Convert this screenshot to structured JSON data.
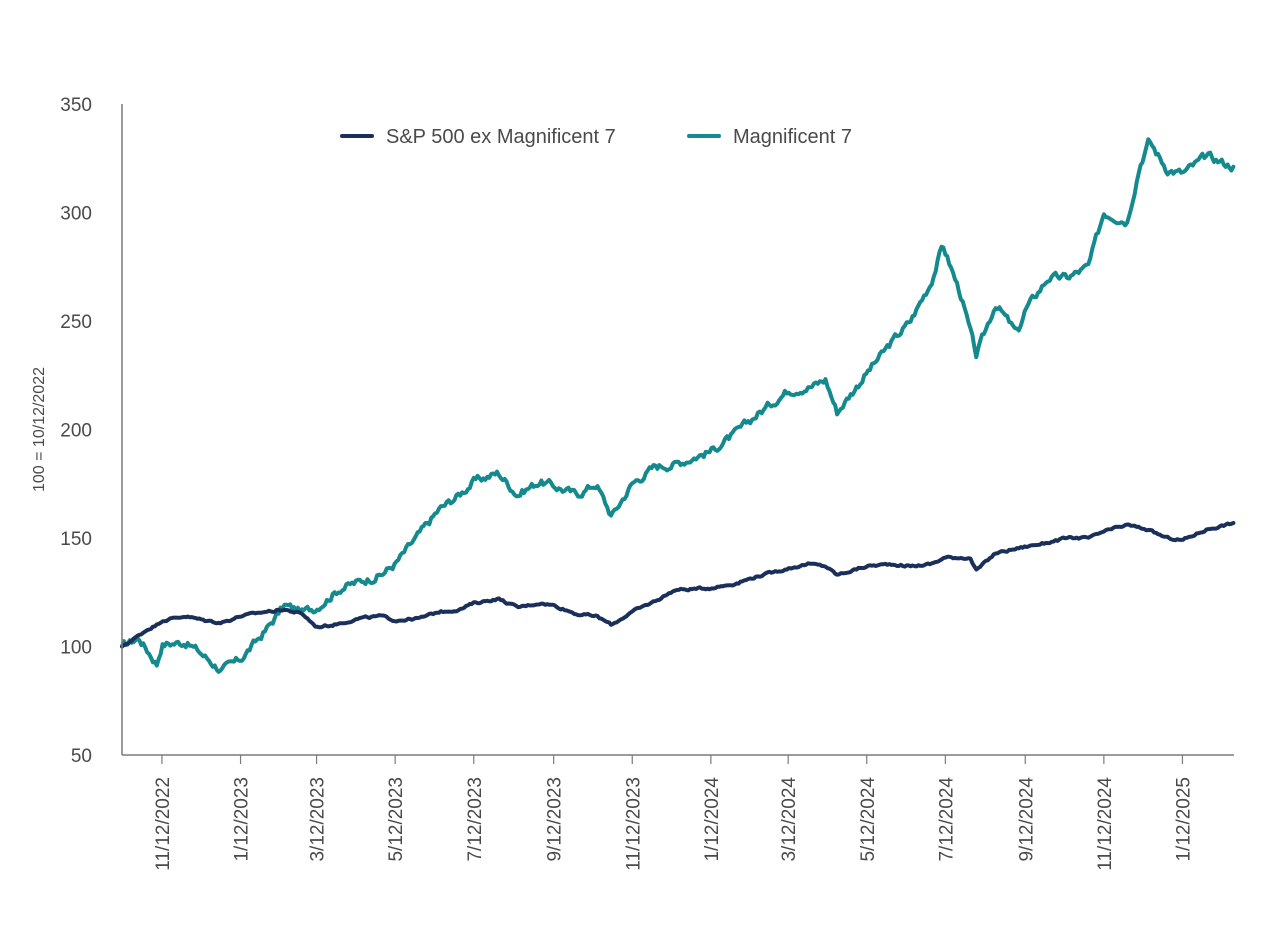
{
  "chart_data": {
    "type": "line",
    "title": "",
    "xlabel": "",
    "ylabel": "100 = 10/12/2022",
    "ylim": [
      50,
      350
    ],
    "yticks": [
      50,
      100,
      150,
      200,
      250,
      300,
      350
    ],
    "xlim": [
      "10/12/2022",
      "2/21/2025"
    ],
    "xticks": [
      "11/12/2022",
      "1/12/2023",
      "3/12/2023",
      "5/12/2023",
      "7/12/2023",
      "9/12/2023",
      "11/12/2023",
      "1/12/2024",
      "3/12/2024",
      "5/12/2024",
      "7/12/2024",
      "9/12/2024",
      "11/12/2024",
      "1/12/2025"
    ],
    "grid": false,
    "legend": "top-center",
    "series": [
      {
        "name": "S&P 500 ex Magnificent 7",
        "color": "#1b2f5b",
        "points": [
          [
            "10/12/2022",
            100
          ],
          [
            "10/20/2022",
            103
          ],
          [
            "11/1/2022",
            108
          ],
          [
            "11/8/2022",
            110
          ],
          [
            "11/12/2022",
            112
          ],
          [
            "11/30/2022",
            114
          ],
          [
            "12/15/2022",
            112
          ],
          [
            "12/28/2022",
            111
          ],
          [
            "1/12/2023",
            114
          ],
          [
            "1/31/2023",
            116
          ],
          [
            "2/15/2023",
            117
          ],
          [
            "3/1/2023",
            115
          ],
          [
            "3/12/2023",
            109
          ],
          [
            "3/25/2023",
            110
          ],
          [
            "4/15/2023",
            113
          ],
          [
            "5/1/2023",
            114
          ],
          [
            "5/12/2023",
            112
          ],
          [
            "5/31/2023",
            113
          ],
          [
            "6/15/2023",
            116
          ],
          [
            "7/1/2023",
            117
          ],
          [
            "7/12/2023",
            120
          ],
          [
            "7/31/2023",
            122
          ],
          [
            "8/15/2023",
            118
          ],
          [
            "9/1/2023",
            120
          ],
          [
            "9/12/2023",
            119
          ],
          [
            "9/30/2023",
            115
          ],
          [
            "10/15/2023",
            114
          ],
          [
            "10/27/2023",
            110
          ],
          [
            "11/12/2023",
            116
          ],
          [
            "11/30/2023",
            121
          ],
          [
            "12/15/2023",
            126
          ],
          [
            "1/12/2024",
            127
          ],
          [
            "1/31/2024",
            129
          ],
          [
            "2/15/2024",
            132
          ],
          [
            "3/12/2024",
            136
          ],
          [
            "3/28/2024",
            138
          ],
          [
            "4/10/2024",
            137
          ],
          [
            "4/19/2024",
            133
          ],
          [
            "5/12/2024",
            137
          ],
          [
            "5/31/2024",
            138
          ],
          [
            "6/15/2024",
            137
          ],
          [
            "7/1/2024",
            138
          ],
          [
            "7/12/2024",
            141
          ],
          [
            "7/31/2024",
            141
          ],
          [
            "8/5/2024",
            135
          ],
          [
            "8/20/2024",
            143
          ],
          [
            "9/12/2024",
            146
          ],
          [
            "9/30/2024",
            148
          ],
          [
            "10/15/2024",
            150
          ],
          [
            "11/1/2024",
            150
          ],
          [
            "11/12/2024",
            153
          ],
          [
            "11/30/2024",
            156
          ],
          [
            "12/15/2024",
            154
          ],
          [
            "12/31/2024",
            150
          ],
          [
            "1/12/2025",
            149
          ],
          [
            "1/31/2025",
            154
          ],
          [
            "2/21/2025",
            157
          ]
        ]
      },
      {
        "name": "Magnificent 7",
        "color": "#158a8e",
        "points": [
          [
            "10/12/2022",
            100
          ],
          [
            "10/25/2022",
            104
          ],
          [
            "11/1/2022",
            98
          ],
          [
            "11/8/2022",
            92
          ],
          [
            "11/12/2022",
            101
          ],
          [
            "11/30/2022",
            102
          ],
          [
            "12/10/2022",
            98
          ],
          [
            "12/28/2022",
            89
          ],
          [
            "1/12/2023",
            94
          ],
          [
            "1/31/2023",
            107
          ],
          [
            "2/15/2023",
            119
          ],
          [
            "3/1/2023",
            116
          ],
          [
            "3/12/2023",
            118
          ],
          [
            "3/31/2023",
            127
          ],
          [
            "4/15/2023",
            130
          ],
          [
            "5/1/2023",
            133
          ],
          [
            "5/12/2023",
            138
          ],
          [
            "5/31/2023",
            152
          ],
          [
            "6/15/2023",
            163
          ],
          [
            "7/1/2023",
            170
          ],
          [
            "7/12/2023",
            176
          ],
          [
            "7/31/2023",
            180
          ],
          [
            "8/15/2023",
            170
          ],
          [
            "9/1/2023",
            176
          ],
          [
            "9/12/2023",
            174
          ],
          [
            "9/30/2023",
            170
          ],
          [
            "10/15/2023",
            175
          ],
          [
            "10/27/2023",
            160
          ],
          [
            "11/12/2023",
            175
          ],
          [
            "11/30/2023",
            183
          ],
          [
            "12/15/2023",
            184
          ],
          [
            "1/12/2024",
            190
          ],
          [
            "1/31/2024",
            198
          ],
          [
            "2/15/2024",
            206
          ],
          [
            "3/12/2024",
            218
          ],
          [
            "3/31/2024",
            220
          ],
          [
            "4/10/2024",
            223
          ],
          [
            "4/19/2024",
            208
          ],
          [
            "5/12/2024",
            226
          ],
          [
            "5/31/2024",
            240
          ],
          [
            "6/15/2024",
            250
          ],
          [
            "7/1/2024",
            268
          ],
          [
            "7/10/2024",
            285
          ],
          [
            "7/24/2024",
            262
          ],
          [
            "8/5/2024",
            234
          ],
          [
            "8/20/2024",
            258
          ],
          [
            "9/6/2024",
            244
          ],
          [
            "9/12/2024",
            255
          ],
          [
            "9/30/2024",
            270
          ],
          [
            "10/15/2024",
            270
          ],
          [
            "10/31/2024",
            275
          ],
          [
            "11/12/2024",
            300
          ],
          [
            "11/30/2024",
            296
          ],
          [
            "12/10/2024",
            322
          ],
          [
            "12/17/2024",
            333
          ],
          [
            "12/31/2024",
            320
          ],
          [
            "1/12/2025",
            318
          ],
          [
            "1/31/2025",
            326
          ],
          [
            "2/21/2025",
            321
          ]
        ]
      }
    ]
  }
}
